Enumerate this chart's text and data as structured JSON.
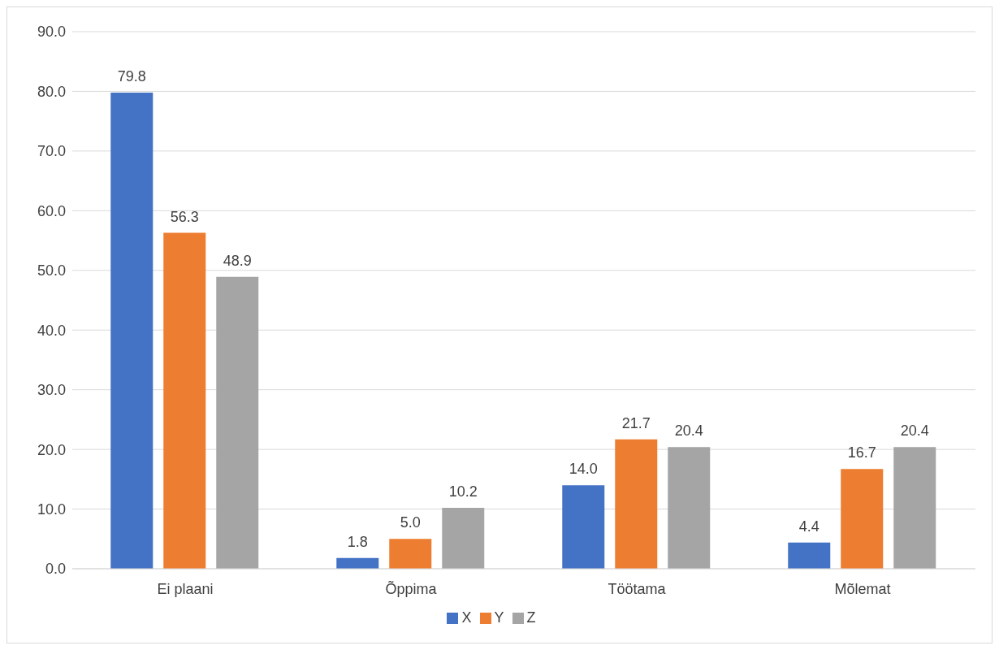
{
  "chart_data": {
    "type": "bar",
    "categories": [
      "Ei plaani",
      "Õppima",
      "Töötama",
      "Mõlemat"
    ],
    "series": [
      {
        "name": "X",
        "color": "#4472c4",
        "values": [
          79.8,
          1.8,
          14.0,
          4.4
        ],
        "value_labels": [
          "79.8",
          "1.8",
          "14.0",
          "4.4"
        ]
      },
      {
        "name": "Y",
        "color": "#ed7d31",
        "values": [
          56.3,
          5.0,
          21.7,
          16.7
        ],
        "value_labels": [
          "56.3",
          "5.0",
          "21.7",
          "16.7"
        ]
      },
      {
        "name": "Z",
        "color": "#a5a5a5",
        "values": [
          48.9,
          10.2,
          20.4,
          20.4
        ],
        "value_labels": [
          "48.9",
          "10.2",
          "20.4",
          "20.4"
        ]
      }
    ],
    "ylim": [
      0,
      90
    ],
    "yticks": [
      {
        "value": 0,
        "label": "0.0"
      },
      {
        "value": 10,
        "label": "10.0"
      },
      {
        "value": 20,
        "label": "20.0"
      },
      {
        "value": 30,
        "label": "30.0"
      },
      {
        "value": 40,
        "label": "40.0"
      },
      {
        "value": 50,
        "label": "50.0"
      },
      {
        "value": 60,
        "label": "60.0"
      },
      {
        "value": 70,
        "label": "70.0"
      },
      {
        "value": 80,
        "label": "80.0"
      },
      {
        "value": 90,
        "label": "90.0"
      }
    ],
    "grid": "y",
    "legend": "bottom"
  }
}
